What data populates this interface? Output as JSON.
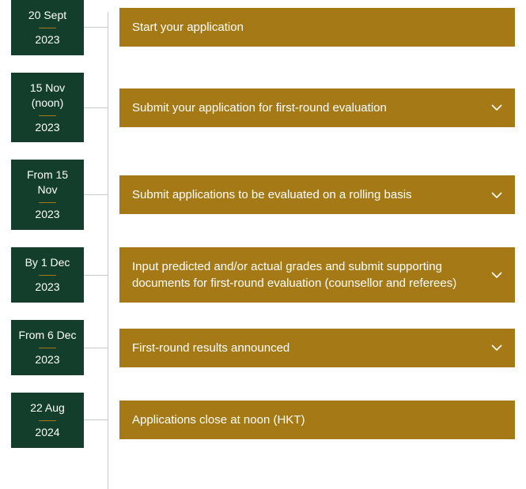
{
  "style": {
    "date_bg": "#143e2c",
    "date_text_color": "#ffffff",
    "accent_color": "#a57915",
    "event_bg": "#a57915",
    "event_text_color": "#ffffff",
    "line_color": "#c9c9c9",
    "chevron_color": "#ffffff"
  },
  "timeline": {
    "items": [
      {
        "date_label": "20 Sept",
        "date_year": "2023",
        "text": "Start your application",
        "expandable": false
      },
      {
        "date_label": "15 Nov (noon)",
        "date_year": "2023",
        "text": "Submit your application for first-round evaluation",
        "expandable": true
      },
      {
        "date_label": "From 15 Nov",
        "date_year": "2023",
        "text": "Submit applications to be evaluated on a rolling basis",
        "expandable": true
      },
      {
        "date_label": "By 1 Dec",
        "date_year": "2023",
        "text": "Input predicted and/or actual grades and submit supporting documents for first-round evaluation (counsellor and referees)",
        "expandable": true
      },
      {
        "date_label": "From 6 Dec",
        "date_year": "2023",
        "text": "First-round results announced",
        "expandable": true
      },
      {
        "date_label": "22 Aug",
        "date_year": "2024",
        "text": "Applications close at noon (HKT)",
        "expandable": false
      }
    ]
  }
}
